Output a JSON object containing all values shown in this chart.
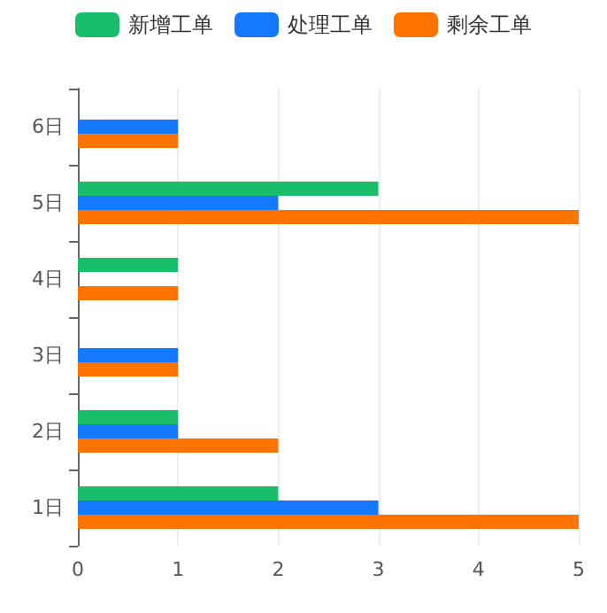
{
  "chart_data": {
    "type": "bar",
    "orientation": "horizontal",
    "categories": [
      "6日",
      "5日",
      "4日",
      "3日",
      "2日",
      "1日"
    ],
    "series": [
      {
        "name": "新增工单",
        "color": "#19be6b",
        "values": [
          0,
          3,
          1,
          0,
          1,
          2
        ]
      },
      {
        "name": "处理工单",
        "color": "#1677ff",
        "values": [
          1,
          2,
          0,
          1,
          1,
          3
        ]
      },
      {
        "name": "剩余工单",
        "color": "#ff7300",
        "values": [
          1,
          5,
          1,
          1,
          2,
          5
        ]
      }
    ],
    "xlim": [
      0,
      5
    ],
    "xticks": [
      0,
      1,
      2,
      3,
      4,
      5
    ],
    "grid": "x",
    "legend": "top"
  }
}
